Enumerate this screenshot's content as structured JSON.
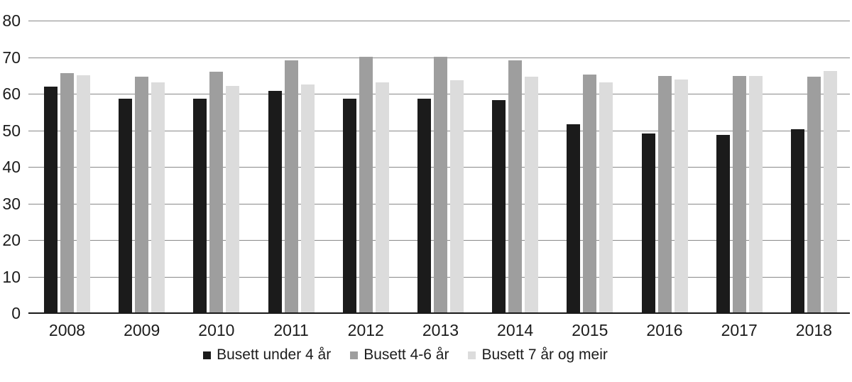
{
  "chart_data": {
    "type": "bar",
    "title": "",
    "xlabel": "",
    "ylabel": "",
    "categories": [
      "2008",
      "2009",
      "2010",
      "2011",
      "2012",
      "2013",
      "2014",
      "2015",
      "2016",
      "2017",
      "2018"
    ],
    "series": [
      {
        "name": "Busett under 4 år",
        "color": "#1b1b1b",
        "values": [
          62.0,
          58.6,
          58.6,
          60.7,
          58.6,
          58.6,
          58.2,
          51.6,
          49.2,
          48.8,
          50.2
        ]
      },
      {
        "name": "Busett 4-6 år",
        "color": "#9e9e9e",
        "values": [
          65.6,
          64.7,
          66.1,
          69.2,
          70.1,
          70.1,
          69.2,
          65.3,
          64.8,
          64.8,
          64.7
        ]
      },
      {
        "name": "Busett 7 år og meir",
        "color": "#dcdcdc",
        "values": [
          65.1,
          63.1,
          62.1,
          62.6,
          63.1,
          63.6,
          64.7,
          63.2,
          63.8,
          64.8,
          66.2
        ]
      }
    ],
    "ylim": [
      0,
      80
    ],
    "yticks": [
      0,
      10,
      20,
      30,
      40,
      50,
      60,
      70,
      80
    ],
    "grid": true,
    "gridline_color": "#8a8a8a",
    "baseline_color": "#1a1a1a",
    "legend_position": "bottom"
  }
}
